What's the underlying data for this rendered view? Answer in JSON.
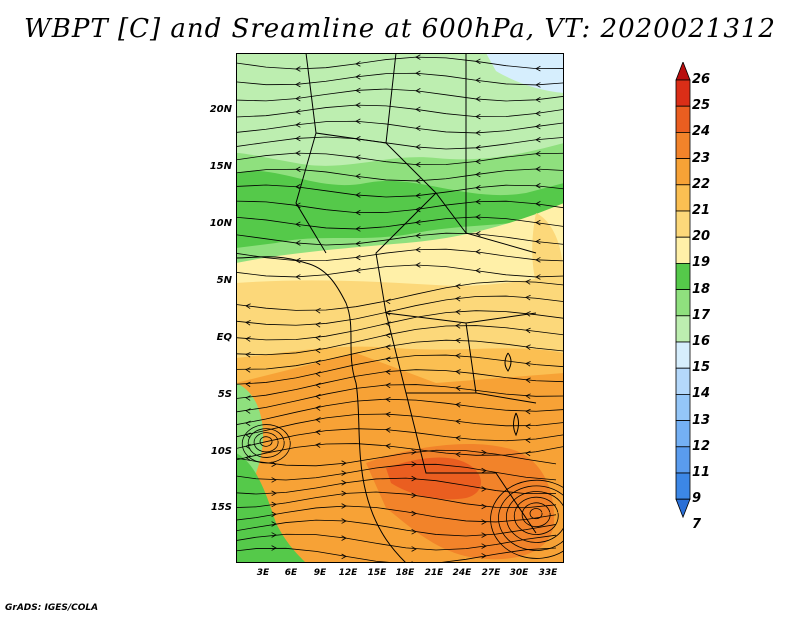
{
  "title": "WBPT [C] and Sreamline at 600hPa, VT: 2020021312",
  "credit": "GrADS: IGES/COLA",
  "map": {
    "lat_labels": [
      "20N",
      "15N",
      "10N",
      "5N",
      "EQ",
      "5S",
      "10S",
      "15S"
    ],
    "lon_labels": [
      "3E",
      "6E",
      "9E",
      "12E",
      "15E",
      "18E",
      "21E",
      "24E",
      "27E",
      "30E",
      "33E"
    ]
  },
  "colorbar": {
    "levels": [
      "26",
      "25",
      "24",
      "23",
      "22",
      "21",
      "20",
      "19",
      "18",
      "17",
      "16",
      "15",
      "14",
      "13",
      "12",
      "11",
      "9",
      "7"
    ],
    "colors": {
      "7": "#2a6fd6",
      "9": "#3c87e6",
      "11": "#5a9cee",
      "12": "#74b0f4",
      "13": "#94c6f8",
      "14": "#b4d8fb",
      "15": "#d6eefd",
      "16": "#bdeeb0",
      "17": "#8fe07e",
      "18": "#55c94a",
      "19": "#fff0a8",
      "20": "#fcd87a",
      "21": "#fbbf52",
      "22": "#f7a236",
      "23": "#f2832a",
      "24": "#ea5e20",
      "25": "#da2e17",
      "26": "#b80e0e"
    }
  }
}
